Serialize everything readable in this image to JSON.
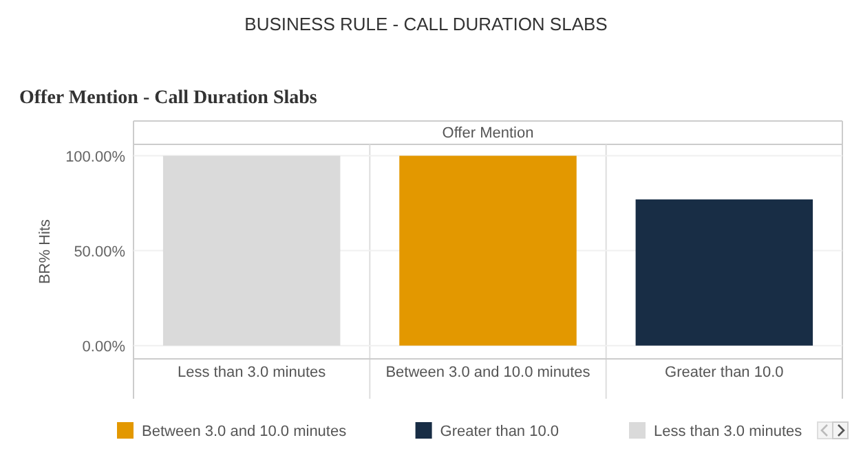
{
  "chart_data": {
    "type": "bar",
    "title": "BUSINESS RULE - CALL DURATION SLABS",
    "subtitle": "Offer Mention - Call Duration Slabs",
    "annotations": [
      "Offer Mention"
    ],
    "ylabel": "BR% Hits",
    "categories": [
      "Less than 3.0 minutes",
      "Between 3.0 and 10.0 minutes",
      "Greater than 10.0"
    ],
    "series": [
      {
        "name": "Between 3.0 and 10.0 minutes",
        "color": "#e39800",
        "values": [
          null,
          100,
          null
        ]
      },
      {
        "name": "Greater than 10.0",
        "color": "#182d45",
        "values": [
          null,
          null,
          77
        ]
      },
      {
        "name": "Less than 3.0 minutes",
        "color": "#dadada",
        "values": [
          100,
          null,
          null
        ]
      }
    ],
    "ylim": [
      -7,
      106
    ],
    "yticks": [
      {
        "value": 0,
        "label": "0.00%"
      },
      {
        "value": 50,
        "label": "50.00%"
      },
      {
        "value": 100,
        "label": "100.00%"
      }
    ],
    "grid": "y",
    "legend": "bottom"
  }
}
